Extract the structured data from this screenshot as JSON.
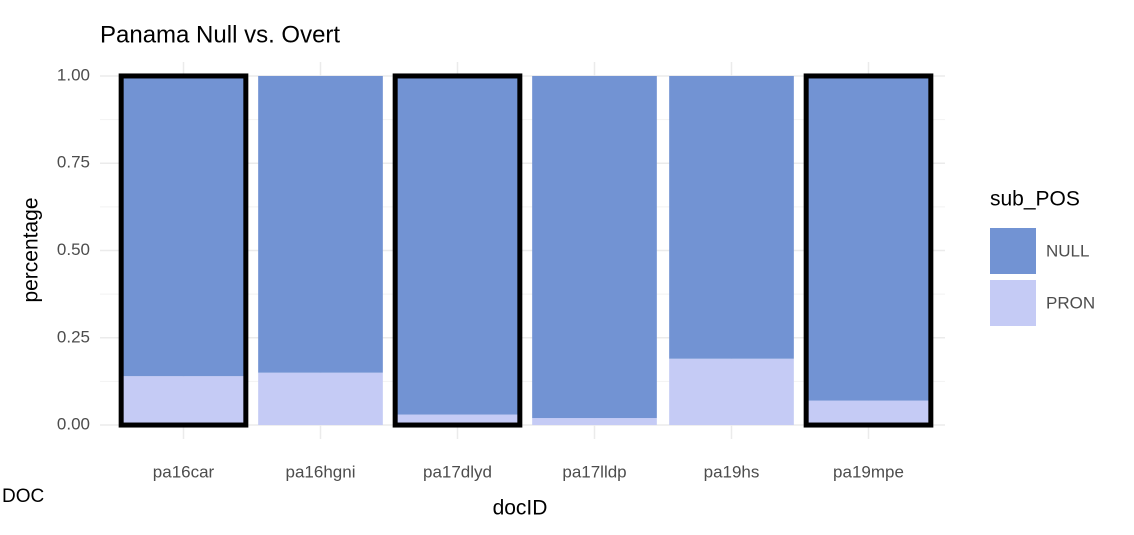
{
  "chart_data": {
    "type": "stacked_bar",
    "title": "Panama Null vs. Overt",
    "x_label": "docID",
    "y_label": "percentage",
    "legend_title": "sub_POS",
    "legend_position": "right",
    "categories": [
      "pa16car",
      "pa16hgni",
      "pa17dlyd",
      "pa17lldp",
      "pa19hs",
      "pa19mpe"
    ],
    "series": [
      {
        "name": "PRON",
        "color": "#c5cbf5",
        "values": [
          0.14,
          0.15,
          0.03,
          0.02,
          0.19,
          0.07
        ]
      },
      {
        "name": "NULL",
        "color": "#7293d3",
        "values": [
          0.86,
          0.85,
          0.97,
          0.98,
          0.81,
          0.93
        ]
      }
    ],
    "ylim": [
      -0.04,
      1.04
    ],
    "yticks": [
      {
        "value": 0,
        "label": "0.00"
      },
      {
        "value": 0.25,
        "label": "0.25"
      },
      {
        "value": 0.5,
        "label": "0.50"
      },
      {
        "value": 0.75,
        "label": "0.75"
      },
      {
        "value": 1,
        "label": "1.00"
      }
    ],
    "grid": true,
    "highlighted": [
      0,
      2,
      5
    ],
    "annotations": [
      "DOC"
    ]
  }
}
